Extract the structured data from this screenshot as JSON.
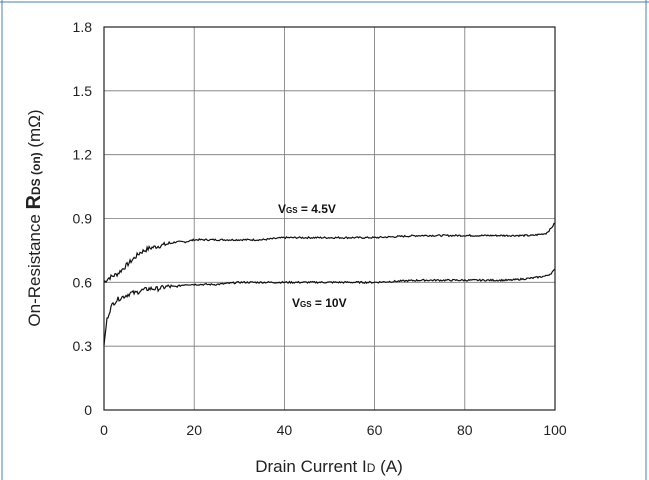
{
  "chart_data": {
    "type": "line",
    "title": "",
    "xlabel": {
      "main": "Drain Current I",
      "sub": "D",
      "unit": " (A)"
    },
    "ylabel": {
      "prefix": "On-Resistance ",
      "symbol": "R",
      "sub": "DS (on)",
      "unit": " (mΩ)"
    },
    "xlim": [
      0,
      100
    ],
    "ylim": [
      0,
      1.8
    ],
    "xticks": [
      "0",
      "20",
      "40",
      "60",
      "80",
      "100"
    ],
    "yticks": [
      "0",
      "0.3",
      "0.6",
      "0.9",
      "1.2",
      "1.5",
      "1.8"
    ],
    "grid": true,
    "series": [
      {
        "name": "VGS = 4.5V",
        "label_main": "V",
        "label_sub": "GS",
        "label_rest": " = 4.5V",
        "color": "#111111",
        "x": [
          0,
          0.5,
          1,
          2,
          3,
          4,
          5,
          6,
          7,
          8,
          9,
          10,
          12,
          14,
          16,
          18,
          20,
          25,
          30,
          35,
          40,
          50,
          60,
          70,
          80,
          90,
          95,
          98,
          99,
          100
        ],
        "y": [
          0.6,
          0.61,
          0.62,
          0.63,
          0.64,
          0.66,
          0.68,
          0.7,
          0.72,
          0.74,
          0.75,
          0.76,
          0.77,
          0.78,
          0.79,
          0.79,
          0.8,
          0.8,
          0.8,
          0.8,
          0.81,
          0.81,
          0.81,
          0.82,
          0.82,
          0.82,
          0.82,
          0.83,
          0.85,
          0.88
        ]
      },
      {
        "name": "VGS = 10V",
        "label_main": "V",
        "label_sub": "GS",
        "label_rest": " = 10V",
        "color": "#111111",
        "x": [
          0,
          0.3,
          0.6,
          1,
          1.5,
          2,
          3,
          4,
          5,
          6,
          7,
          8,
          10,
          12,
          14,
          16,
          18,
          20,
          25,
          30,
          40,
          50,
          60,
          70,
          80,
          90,
          95,
          98,
          99,
          100
        ],
        "y": [
          0.3,
          0.36,
          0.42,
          0.45,
          0.48,
          0.5,
          0.52,
          0.53,
          0.54,
          0.55,
          0.55,
          0.56,
          0.57,
          0.57,
          0.58,
          0.58,
          0.59,
          0.59,
          0.59,
          0.6,
          0.6,
          0.6,
          0.6,
          0.61,
          0.61,
          0.61,
          0.62,
          0.63,
          0.64,
          0.66
        ]
      }
    ]
  }
}
